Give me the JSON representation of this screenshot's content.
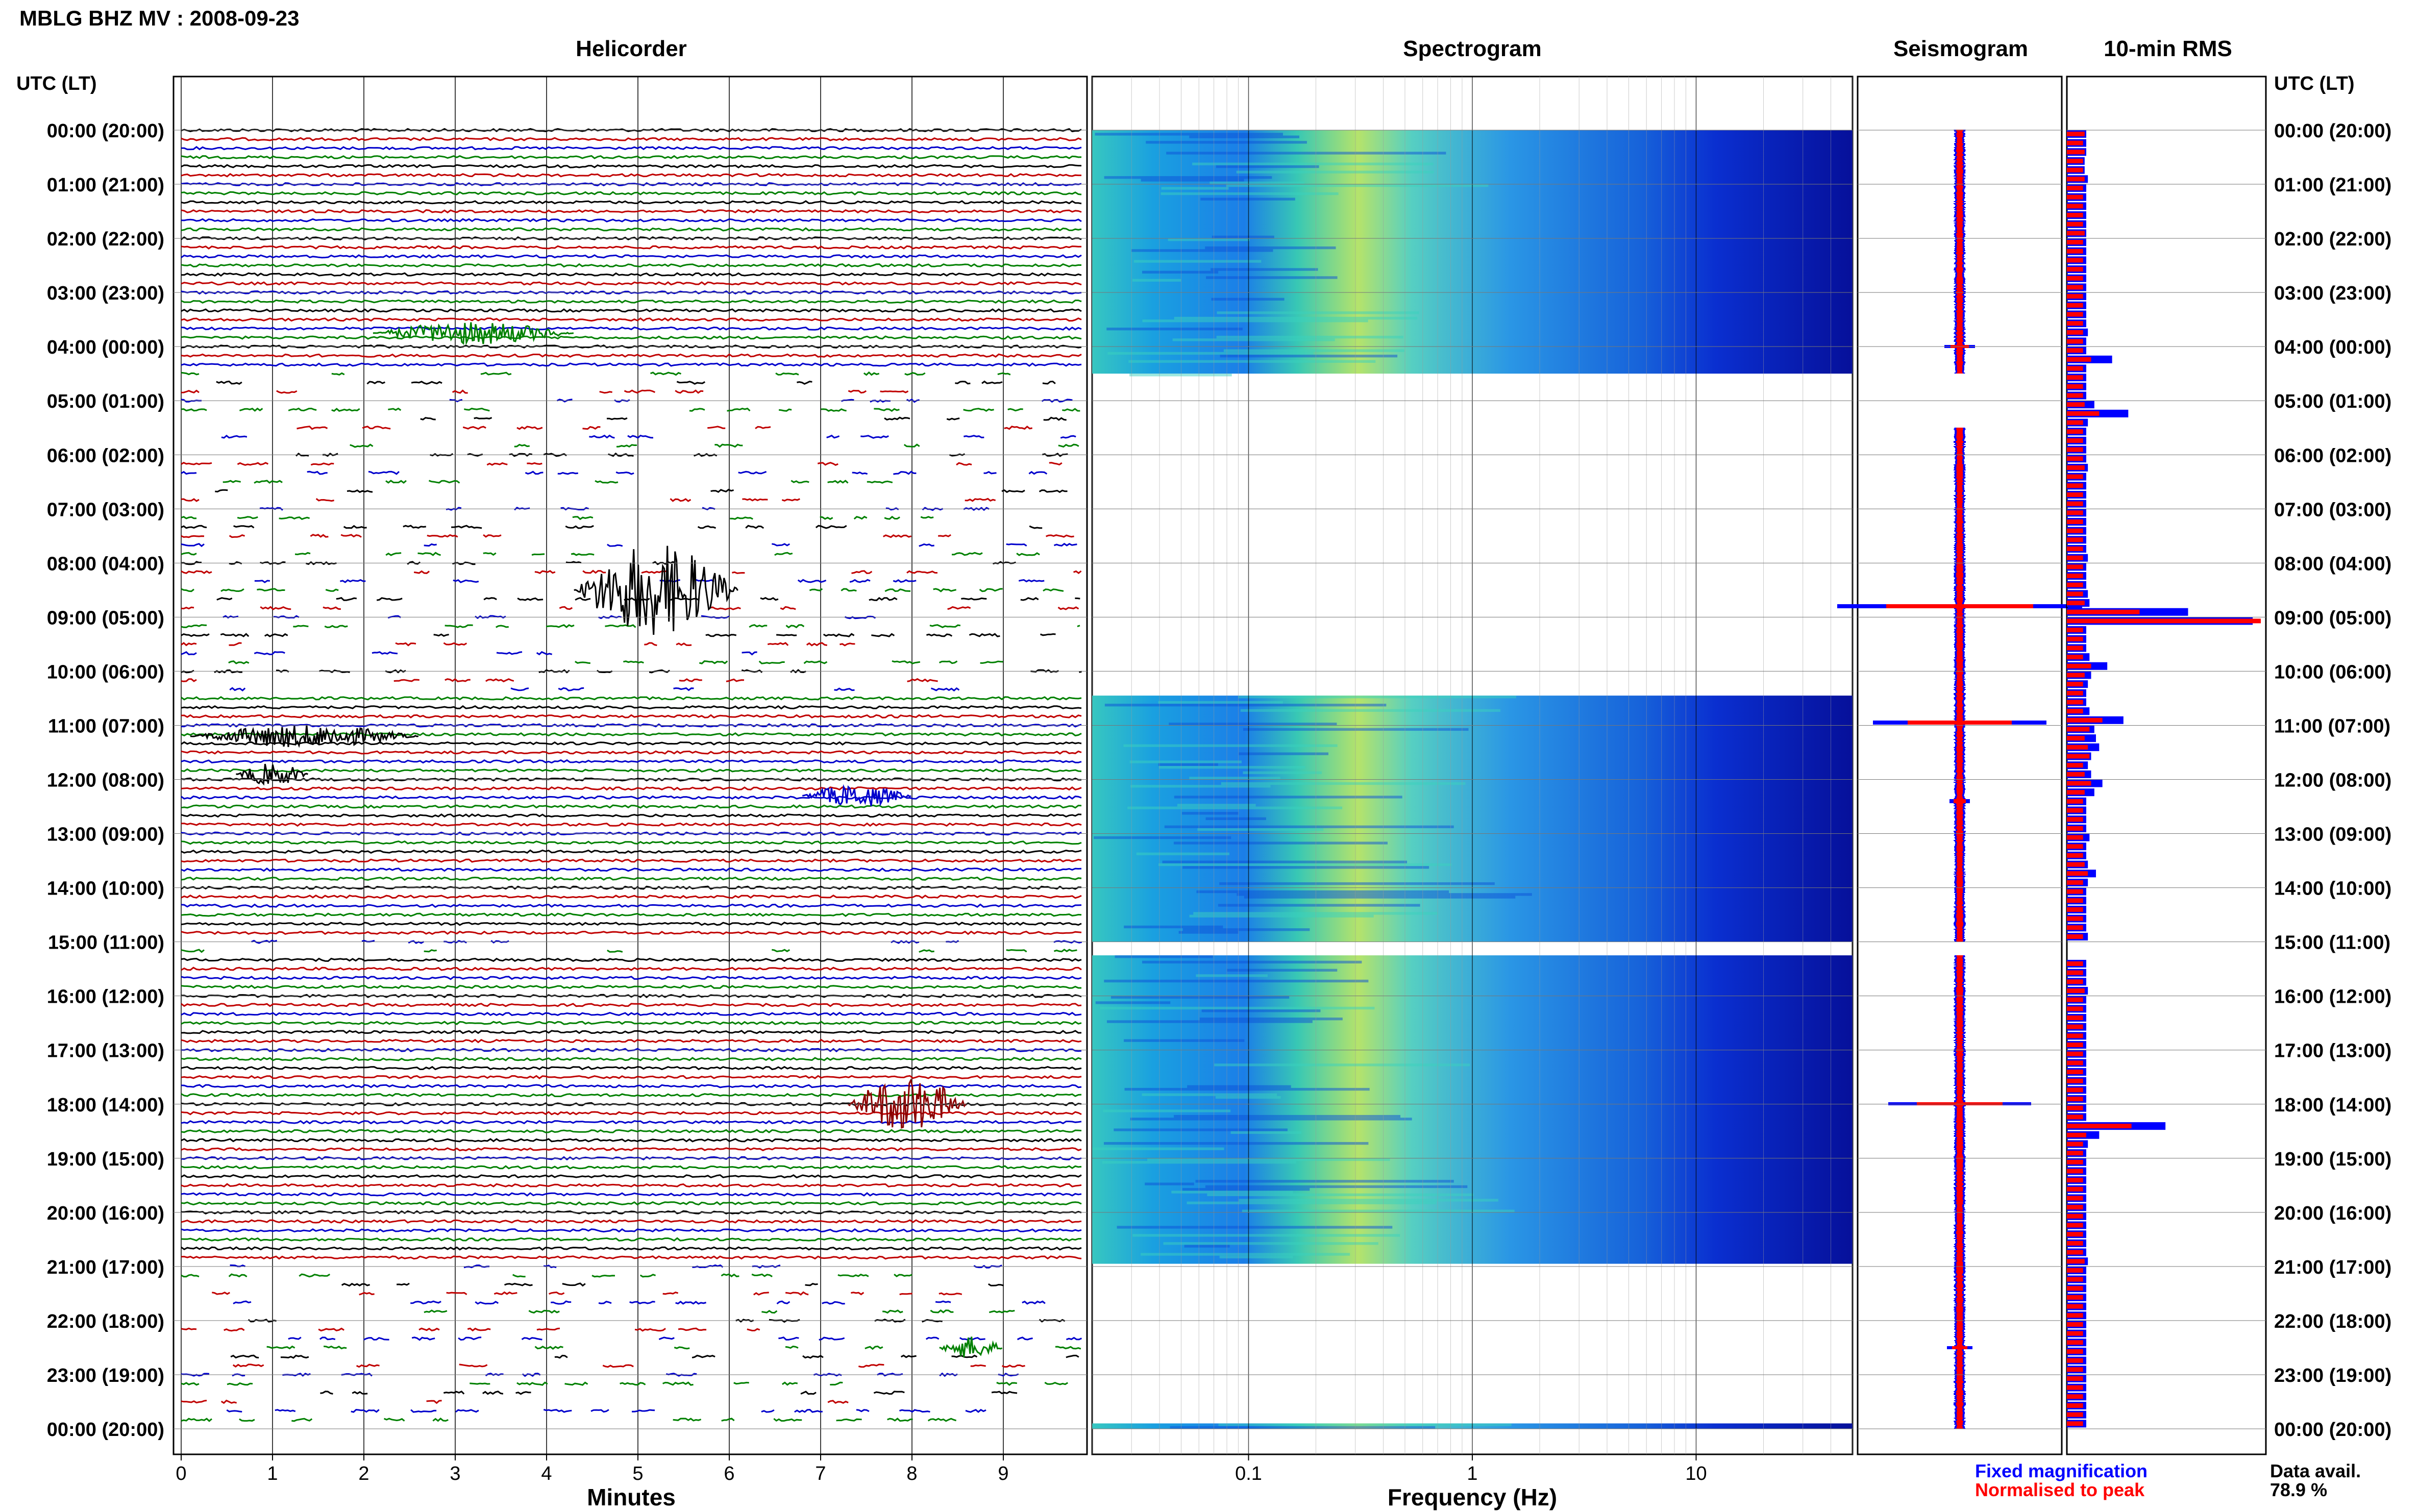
{
  "header": {
    "title": "MBLG BHZ MV : 2008-09-23",
    "left_axis_title": "UTC (LT)",
    "right_axis_title": "UTC (LT)"
  },
  "panels": {
    "helicorder": "Helicorder",
    "spectrogram": "Spectrogram",
    "seismogram": "Seismogram",
    "rms": "10-min RMS"
  },
  "axes": {
    "minutes_label": "Minutes",
    "frequency_label": "Frequency (Hz)",
    "minute_ticks": [
      "0",
      "1",
      "2",
      "3",
      "4",
      "5",
      "6",
      "7",
      "8",
      "9"
    ],
    "frequency_ticks": [
      "0.1",
      "1",
      "10"
    ],
    "time_labels": [
      "00:00 (20:00)",
      "01:00 (21:00)",
      "02:00 (22:00)",
      "03:00 (23:00)",
      "04:00 (00:00)",
      "05:00 (01:00)",
      "06:00 (02:00)",
      "07:00 (03:00)",
      "08:00 (04:00)",
      "09:00 (05:00)",
      "10:00 (06:00)",
      "11:00 (07:00)",
      "12:00 (08:00)",
      "13:00 (09:00)",
      "14:00 (10:00)",
      "15:00 (11:00)",
      "16:00 (12:00)",
      "17:00 (13:00)",
      "18:00 (14:00)",
      "19:00 (15:00)",
      "20:00 (16:00)",
      "21:00 (17:00)",
      "22:00 (18:00)",
      "23:00 (19:00)",
      "00:00 (20:00)"
    ]
  },
  "legend": {
    "fixed": "Fixed magnification",
    "normalised": "Normalised to peak",
    "fixed_color": "#0000ff",
    "normalised_color": "#ff0000"
  },
  "availability": {
    "label": "Data avail.",
    "value": "78.9 %"
  },
  "colors": {
    "trace_cycle": [
      "#000000",
      "#c00000",
      "#0000cc",
      "#008000"
    ],
    "rms_fixed": "#0000ff",
    "rms_norm": "#ff0000"
  },
  "chart_data": {
    "type": "helicorder",
    "x_range_minutes": [
      0,
      10
    ],
    "frequency_range_hz": [
      0.02,
      50
    ],
    "frequency_scale": "log",
    "gaps_hours": [
      [
        4.5,
        10.45
      ],
      [
        15.0,
        15.25
      ],
      [
        20.95,
        24.0
      ]
    ],
    "spectrogram_data_ranges_hours": [
      [
        0.0,
        4.5
      ],
      [
        10.45,
        15.0
      ],
      [
        15.25,
        20.95
      ],
      [
        23.9,
        24.0
      ]
    ],
    "events": [
      {
        "hour": 8.5,
        "minute_start": 4.3,
        "minute_end": 6.1,
        "color": "black"
      },
      {
        "hour": 11.2,
        "minute_start": 0.1,
        "minute_end": 2.6,
        "color": "black"
      },
      {
        "hour": 11.9,
        "minute_start": 0.6,
        "minute_end": 1.4,
        "color": "black"
      },
      {
        "hour": 12.3,
        "minute_start": 6.8,
        "minute_end": 8.0,
        "color": "blue"
      },
      {
        "hour": 18.0,
        "minute_start": 7.3,
        "minute_end": 8.6,
        "color": "dark-red"
      },
      {
        "hour": 22.5,
        "minute_start": 8.3,
        "minute_end": 9.0,
        "color": "green"
      },
      {
        "hour": 3.75,
        "minute_start": 2.1,
        "minute_end": 4.3,
        "color": "green"
      }
    ],
    "rms_fixed": [
      24,
      24,
      24,
      22,
      22,
      26,
      24,
      24,
      24,
      24,
      24,
      24,
      24,
      24,
      24,
      24,
      24,
      24,
      24,
      24,
      24,
      24,
      26,
      24,
      24,
      56,
      24,
      24,
      24,
      24,
      34,
      76,
      26,
      24,
      24,
      24,
      24,
      26,
      24,
      24,
      24,
      24,
      24,
      24,
      24,
      24,
      24,
      26,
      24,
      24,
      24,
      26,
      28,
      150,
      230,
      24,
      24,
      24,
      28,
      50,
      30,
      26,
      24,
      24,
      28,
      70,
      34,
      36,
      40,
      30,
      26,
      30,
      44,
      34,
      24,
      24,
      24,
      24,
      28,
      24,
      24,
      26,
      36,
      26,
      24,
      24,
      24,
      24,
      24,
      26,
      24,
      24,
      24,
      24,
      24,
      26,
      24,
      24,
      24,
      24,
      24,
      24,
      24,
      24,
      24,
      24,
      24,
      24,
      24,
      24,
      122,
      40,
      26,
      24,
      24,
      24,
      24,
      24,
      24,
      24,
      24,
      24,
      24,
      24,
      24,
      26,
      24,
      24,
      24,
      24,
      24,
      24,
      24,
      24,
      24,
      24,
      24,
      24,
      24,
      24,
      24,
      24,
      24,
      24
    ],
    "rms_norm": [
      22,
      20,
      22,
      20,
      20,
      22,
      20,
      20,
      20,
      20,
      20,
      22,
      20,
      20,
      20,
      20,
      20,
      20,
      20,
      20,
      20,
      20,
      20,
      20,
      20,
      30,
      20,
      20,
      20,
      20,
      22,
      40,
      20,
      20,
      20,
      20,
      20,
      22,
      20,
      20,
      20,
      20,
      20,
      20,
      20,
      20,
      20,
      20,
      20,
      20,
      20,
      20,
      22,
      90,
      240,
      20,
      20,
      20,
      20,
      30,
      22,
      20,
      20,
      20,
      20,
      44,
      28,
      22,
      26,
      28,
      20,
      22,
      30,
      22,
      20,
      20,
      20,
      20,
      20,
      20,
      20,
      22,
      26,
      20,
      20,
      20,
      20,
      20,
      20,
      20,
      20,
      20,
      20,
      20,
      20,
      22,
      20,
      20,
      20,
      20,
      20,
      20,
      20,
      20,
      20,
      20,
      20,
      20,
      20,
      20,
      80,
      24,
      20,
      20,
      20,
      20,
      20,
      20,
      20,
      20,
      20,
      20,
      20,
      20,
      20,
      22,
      20,
      20,
      20,
      20,
      20,
      20,
      20,
      20,
      20,
      20,
      20,
      20,
      20,
      20,
      20,
      20,
      20,
      20
    ],
    "rms_scale_max": 240
  }
}
